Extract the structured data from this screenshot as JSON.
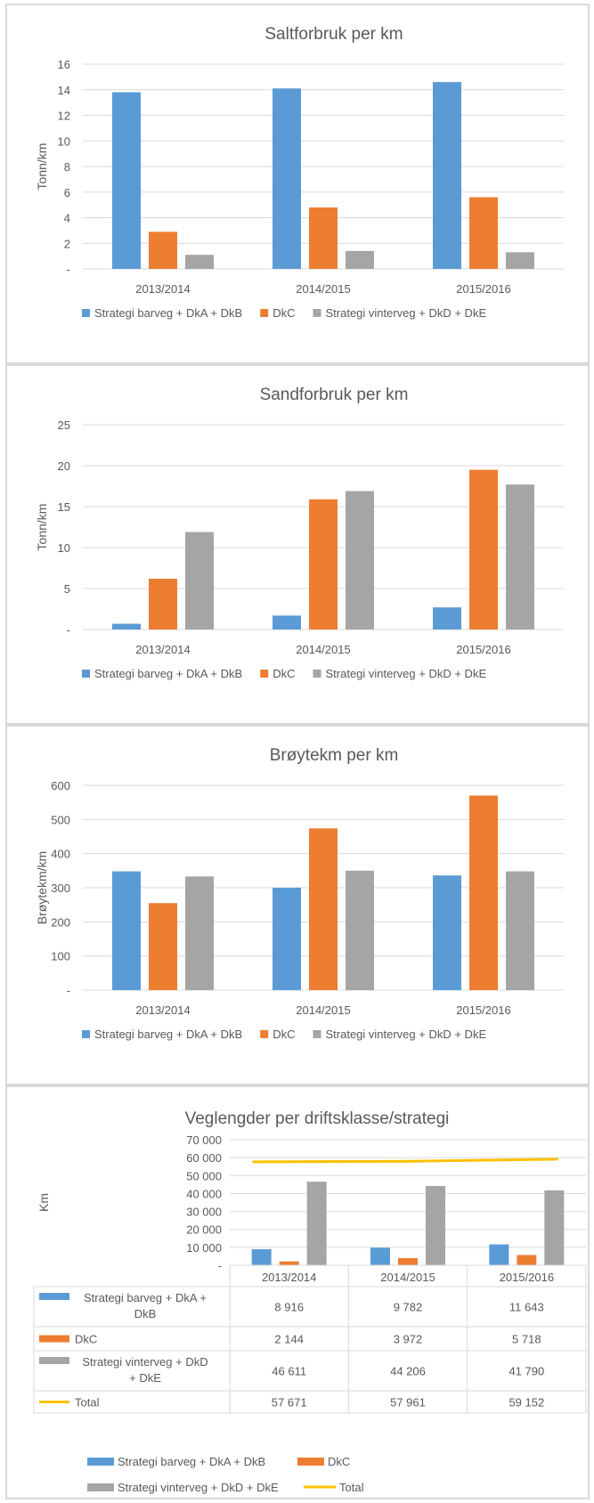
{
  "colors": {
    "barveg": "#5b9bd5",
    "dkc": "#ed7d31",
    "vinterveg": "#a5a5a5",
    "total": "#ffc000",
    "grid": "#d9d9d9",
    "text": "#595959"
  },
  "chart_data": [
    {
      "type": "bar",
      "title": "Saltforbruk per km",
      "xlabel": "",
      "ylabel": "Tonn/km",
      "ylim": [
        0,
        16
      ],
      "yticks": [
        "-",
        "2",
        "4",
        "6",
        "8",
        "10",
        "12",
        "14",
        "16"
      ],
      "categories": [
        "2013/2014",
        "2014/2015",
        "2015/2016"
      ],
      "series": [
        {
          "name": "Strategi barveg + DkA + DkB",
          "values": [
            13.8,
            14.1,
            14.6
          ]
        },
        {
          "name": "DkC",
          "values": [
            2.9,
            4.8,
            5.6
          ]
        },
        {
          "name": "Strategi vinterveg + DkD + DkE",
          "values": [
            1.1,
            1.4,
            1.3
          ]
        }
      ],
      "grid": true,
      "legend": "bottom"
    },
    {
      "type": "bar",
      "title": "Sandforbruk  per km",
      "xlabel": "",
      "ylabel": "Tonn/km",
      "ylim": [
        0,
        25
      ],
      "yticks": [
        "-",
        "5",
        "10",
        "15",
        "20",
        "25"
      ],
      "categories": [
        "2013/2014",
        "2014/2015",
        "2015/2016"
      ],
      "series": [
        {
          "name": "Strategi barveg + DkA + DkB",
          "values": [
            0.7,
            1.7,
            2.7
          ]
        },
        {
          "name": "DkC",
          "values": [
            6.2,
            15.9,
            19.5
          ]
        },
        {
          "name": "Strategi vinterveg + DkD + DkE",
          "values": [
            11.9,
            16.9,
            17.7
          ]
        }
      ],
      "grid": true,
      "legend": "bottom"
    },
    {
      "type": "bar",
      "title": "Brøytekm per km",
      "xlabel": "",
      "ylabel": "Brøytekm/km",
      "ylim": [
        0,
        600
      ],
      "yticks": [
        "-",
        "100",
        "200",
        "300",
        "400",
        "500",
        "600"
      ],
      "categories": [
        "2013/2014",
        "2014/2015",
        "2015/2016"
      ],
      "series": [
        {
          "name": "Strategi barveg + DkA + DkB",
          "values": [
            348,
            300,
            336
          ]
        },
        {
          "name": "DkC",
          "values": [
            255,
            474,
            570
          ]
        },
        {
          "name": "Strategi vinterveg + DkD + DkE",
          "values": [
            333,
            350,
            348
          ]
        }
      ],
      "grid": true,
      "legend": "bottom"
    },
    {
      "type": "bar",
      "title": "Veglengder per driftsklasse/strategi",
      "xlabel": "",
      "ylabel": "Km",
      "ylim": [
        0,
        70000
      ],
      "yticks": [
        "-",
        "10 000",
        "20 000",
        "30 000",
        "40 000",
        "50 000",
        "60 000",
        "70 000"
      ],
      "categories": [
        "2013/2014",
        "2014/2015",
        "2015/2016"
      ],
      "series": [
        {
          "name": "Strategi barveg + DkA + DkB",
          "values": [
            8916,
            9782,
            11643
          ],
          "labels": [
            "8 916",
            "9 782",
            "11 643"
          ]
        },
        {
          "name": "DkC",
          "values": [
            2144,
            3972,
            5718
          ],
          "labels": [
            "2 144",
            "3 972",
            "5 718"
          ]
        },
        {
          "name": "Strategi vinterveg + DkD + DkE",
          "values": [
            46611,
            44206,
            41790
          ],
          "labels": [
            "46 611",
            "44 206",
            "41 790"
          ]
        },
        {
          "name": "Total",
          "type": "line",
          "values": [
            57671,
            57961,
            59152
          ],
          "labels": [
            "57 671",
            "57 961",
            "59 152"
          ]
        }
      ],
      "table_row_labels": [
        [
          "Strategi barveg + DkA +",
          "DkB"
        ],
        [
          "DkC"
        ],
        [
          "Strategi vinterveg + DkD",
          "+ DkE"
        ],
        [
          "Total"
        ]
      ],
      "grid": true,
      "legend": "bottom"
    }
  ]
}
